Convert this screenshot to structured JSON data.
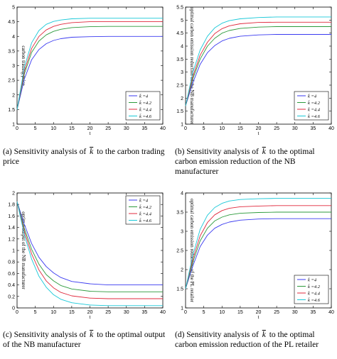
{
  "colors": {
    "series": [
      "#3a3af0",
      "#2c9a3c",
      "#e0283c",
      "#18c8d8"
    ],
    "axis": "#000000",
    "legend_border": "#000000"
  },
  "legend_labels": [
    "k̄ =4",
    "k̄ =4.2",
    "k̄ =4.4",
    "k̄ =4.6"
  ],
  "captions": [
    {
      "prefix": "(a)  Sensitivity  analysis  of",
      "symbol": "k",
      "suffix": "to  the  carbon trading price"
    },
    {
      "prefix": "(b)  Sensitivity  analysis  of",
      "symbol": "k",
      "suffix": "to  the optimal carbon  emission  reduction  of  the  NB manufacturer"
    },
    {
      "prefix": "(c)  Sensitivity  analysis  of",
      "symbol": "k",
      "suffix": "to  the  optimal output of the NB manufacturer"
    },
    {
      "prefix": "(d)  Sensitivity  analysis  of",
      "symbol": "k",
      "suffix": "to  the  optimal carbon emission reduction of the PL retailer"
    }
  ],
  "chart_data": [
    {
      "type": "line",
      "xlabel": "t",
      "ylabel": "carbon trading price",
      "xlim": [
        0,
        40
      ],
      "ylim": [
        1,
        5
      ],
      "xticks": [
        "0",
        "5",
        "10",
        "15",
        "20",
        "25",
        "30",
        "35",
        "40"
      ],
      "yticks": [
        "1",
        "1.5",
        "2",
        "2.5",
        "3",
        "3.5",
        "4",
        "4.5",
        "5"
      ],
      "legend_position": "lower-right",
      "x": [
        0,
        2,
        4,
        6,
        8,
        10,
        12,
        15,
        20,
        25,
        30,
        35,
        40
      ],
      "series": [
        {
          "name": "k̄ =4",
          "values": [
            1.5,
            2.55,
            3.2,
            3.55,
            3.75,
            3.86,
            3.92,
            3.97,
            3.99,
            4.0,
            4.0,
            4.0,
            4.0
          ]
        },
        {
          "name": "k̄ =4.2",
          "values": [
            1.5,
            2.72,
            3.45,
            3.84,
            4.05,
            4.17,
            4.24,
            4.3,
            4.33,
            4.34,
            4.34,
            4.34,
            4.34
          ]
        },
        {
          "name": "k̄ =4.4",
          "values": [
            1.5,
            2.82,
            3.59,
            4.0,
            4.22,
            4.34,
            4.41,
            4.47,
            4.5,
            4.5,
            4.5,
            4.5,
            4.5
          ]
        },
        {
          "name": "k̄ =4.6",
          "values": [
            1.5,
            2.95,
            3.78,
            4.2,
            4.41,
            4.51,
            4.56,
            4.6,
            4.62,
            4.62,
            4.62,
            4.62,
            4.62
          ]
        }
      ]
    },
    {
      "type": "line",
      "xlabel": "t",
      "ylabel": "optimal carbon emission reduction of the NB manufacturer",
      "xlim": [
        0,
        40
      ],
      "ylim": [
        1,
        5.5
      ],
      "xticks": [
        "0",
        "5",
        "10",
        "15",
        "20",
        "25",
        "30",
        "35",
        "40"
      ],
      "yticks": [
        "1",
        "1.5",
        "2",
        "2.5",
        "3",
        "3.5",
        "4",
        "4.5",
        "5",
        "5.5"
      ],
      "legend_position": "lower-right",
      "x": [
        0,
        2,
        4,
        6,
        8,
        10,
        12,
        15,
        20,
        25,
        30,
        35,
        40
      ],
      "series": [
        {
          "name": "k̄ =4",
          "values": [
            1.7,
            2.6,
            3.3,
            3.75,
            4.02,
            4.2,
            4.3,
            4.38,
            4.43,
            4.45,
            4.45,
            4.45,
            4.45
          ]
        },
        {
          "name": "k̄ =4.2",
          "values": [
            1.7,
            2.75,
            3.5,
            4.0,
            4.3,
            4.5,
            4.6,
            4.68,
            4.73,
            4.75,
            4.75,
            4.75,
            4.75
          ]
        },
        {
          "name": "k̄ =4.4",
          "values": [
            1.7,
            2.85,
            3.65,
            4.15,
            4.48,
            4.67,
            4.78,
            4.86,
            4.91,
            4.92,
            4.92,
            4.92,
            4.92
          ]
        },
        {
          "name": "k̄ =4.6",
          "values": [
            1.7,
            3.0,
            3.85,
            4.38,
            4.7,
            4.88,
            4.98,
            5.05,
            5.1,
            5.12,
            5.12,
            5.12,
            5.12
          ]
        }
      ]
    },
    {
      "type": "line",
      "xlabel": "t",
      "ylabel": "optimal output of the NB manufacturer",
      "xlim": [
        0,
        40
      ],
      "ylim": [
        0,
        2
      ],
      "xticks": [
        "0",
        "5",
        "10",
        "15",
        "20",
        "25",
        "30",
        "35",
        "40"
      ],
      "yticks": [
        "0",
        "0.2",
        "0.4",
        "0.6",
        "0.8",
        "1",
        "1.2",
        "1.4",
        "1.6",
        "1.8",
        "2"
      ],
      "legend_position": "upper-right",
      "x": [
        0,
        2,
        4,
        6,
        8,
        10,
        12,
        15,
        20,
        25,
        30,
        35,
        40
      ],
      "series": [
        {
          "name": "k̄ =4",
          "values": [
            1.85,
            1.45,
            1.12,
            0.88,
            0.72,
            0.61,
            0.53,
            0.46,
            0.42,
            0.4,
            0.4,
            0.4,
            0.4
          ]
        },
        {
          "name": "k̄ =4.2",
          "values": [
            1.85,
            1.38,
            1.02,
            0.76,
            0.58,
            0.47,
            0.39,
            0.33,
            0.29,
            0.28,
            0.28,
            0.28,
            0.28
          ]
        },
        {
          "name": "k̄ =4.4",
          "values": [
            1.85,
            1.33,
            0.94,
            0.66,
            0.47,
            0.35,
            0.27,
            0.21,
            0.17,
            0.16,
            0.16,
            0.16,
            0.16
          ]
        },
        {
          "name": "k̄ =4.6",
          "values": [
            1.85,
            1.27,
            0.85,
            0.55,
            0.36,
            0.23,
            0.15,
            0.09,
            0.05,
            0.04,
            0.04,
            0.04,
            0.04
          ]
        }
      ]
    },
    {
      "type": "line",
      "xlabel": "t",
      "ylabel": "optimal carbon emission reduction of the PL retailer",
      "xlim": [
        0,
        40
      ],
      "ylim": [
        1,
        4
      ],
      "xticks": [
        "0",
        "5",
        "10",
        "15",
        "20",
        "25",
        "30",
        "35",
        "40"
      ],
      "yticks": [
        "1",
        "1.5",
        "2",
        "2.5",
        "3",
        "3.5",
        "4"
      ],
      "legend_position": "lower-right",
      "x": [
        0,
        2,
        4,
        6,
        8,
        10,
        12,
        15,
        20,
        25,
        30,
        35,
        40
      ],
      "series": [
        {
          "name": "k̄ =4",
          "values": [
            1.5,
            2.1,
            2.6,
            2.9,
            3.08,
            3.18,
            3.24,
            3.29,
            3.32,
            3.33,
            3.33,
            3.33,
            3.33
          ]
        },
        {
          "name": "k̄ =4.2",
          "values": [
            1.5,
            2.2,
            2.75,
            3.08,
            3.27,
            3.37,
            3.43,
            3.47,
            3.49,
            3.5,
            3.5,
            3.5,
            3.5
          ]
        },
        {
          "name": "k̄ =4.4",
          "values": [
            1.5,
            2.28,
            2.88,
            3.23,
            3.43,
            3.54,
            3.6,
            3.64,
            3.66,
            3.67,
            3.67,
            3.67,
            3.67
          ]
        },
        {
          "name": "k̄ =4.6",
          "values": [
            1.5,
            2.38,
            3.05,
            3.42,
            3.62,
            3.73,
            3.79,
            3.83,
            3.85,
            3.86,
            3.86,
            3.86,
            3.86
          ]
        }
      ]
    }
  ]
}
